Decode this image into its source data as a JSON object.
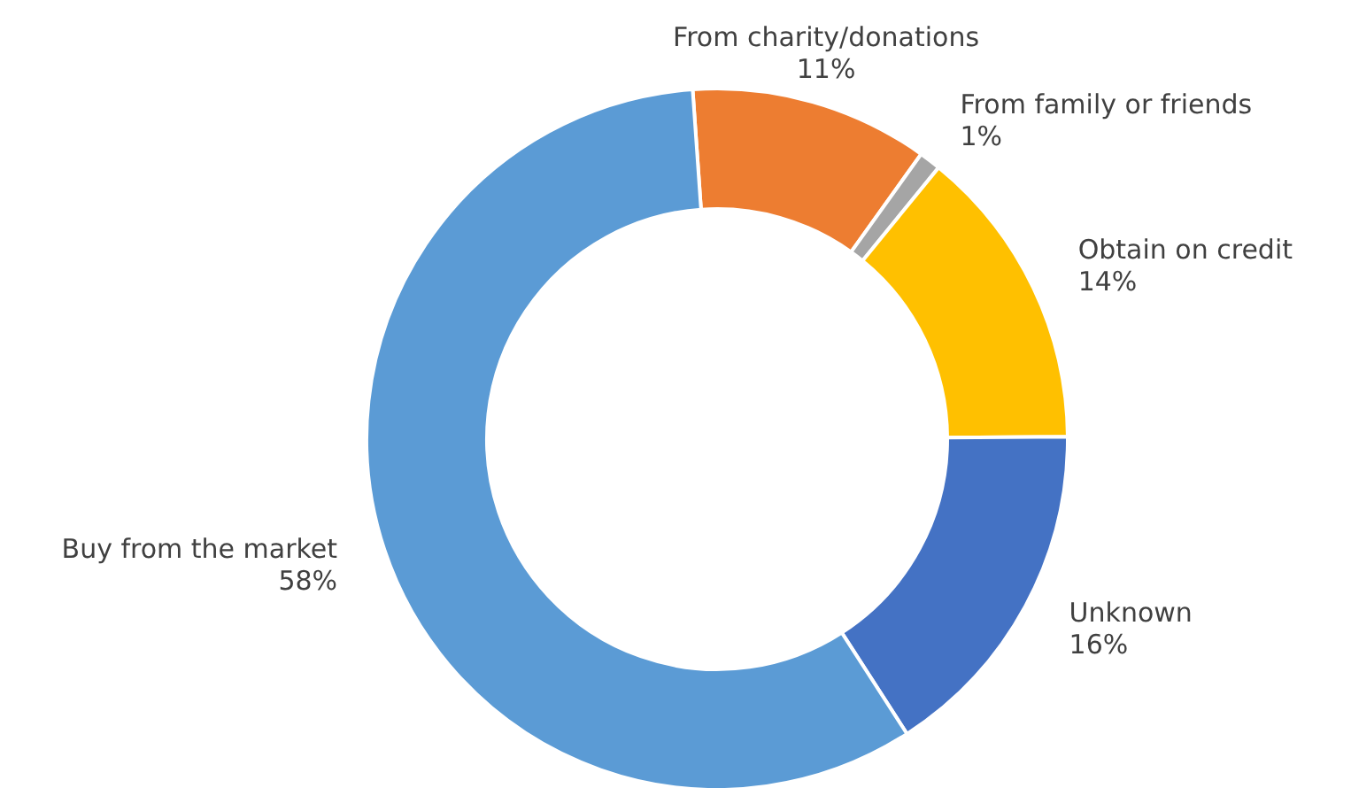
{
  "chart_data": {
    "type": "donut",
    "categories": [
      "From charity/donations",
      "From family or friends",
      "Obtain on credit",
      "Unknown",
      "Buy from the market"
    ],
    "values": [
      11,
      1,
      14,
      16,
      58
    ],
    "value_labels": [
      "11%",
      "1%",
      "14%",
      "16%",
      "58%"
    ],
    "colors": [
      "#ed7d31",
      "#a5a5a5",
      "#ffc000",
      "#4472c4",
      "#5b9bd5"
    ],
    "legend": false
  }
}
